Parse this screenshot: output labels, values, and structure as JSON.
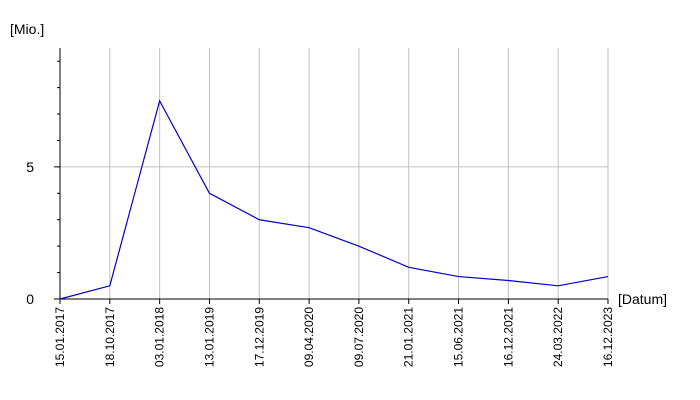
{
  "chart_data": {
    "type": "line",
    "y_label": "[Mio.]",
    "x_label": "[Datum]",
    "categories": [
      "15.01.2017",
      "18.10.2017",
      "03.01.2018",
      "13.01.2019",
      "17.12.2019",
      "09.04.2020",
      "09.07.2020",
      "21.01.2021",
      "15.06.2021",
      "16.12.2021",
      "24.03.2022",
      "16.12.2023"
    ],
    "series": [
      {
        "color": "#0000cc",
        "values": [
          0,
          0.5,
          7.5,
          4.0,
          3.0,
          2.7,
          2.0,
          1.2,
          0.85,
          0.7,
          0.5,
          0.85
        ]
      }
    ],
    "ylim": [
      0,
      9.5
    ],
    "yticks": [
      0,
      5
    ],
    "minor_yticks": [
      1,
      2,
      3,
      4,
      6,
      7,
      8,
      9
    ],
    "grid": true
  }
}
